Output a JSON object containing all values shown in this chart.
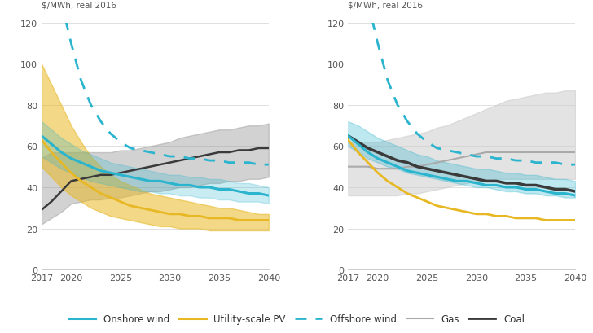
{
  "years": [
    2017,
    2018,
    2019,
    2020,
    2021,
    2022,
    2023,
    2024,
    2025,
    2026,
    2027,
    2028,
    2029,
    2030,
    2031,
    2032,
    2033,
    2034,
    2035,
    2036,
    2037,
    2038,
    2039,
    2040
  ],
  "onshore_wind_mid": [
    65,
    61,
    57,
    54,
    52,
    50,
    48,
    47,
    46,
    45,
    44,
    43,
    43,
    42,
    41,
    41,
    40,
    40,
    39,
    39,
    38,
    37,
    37,
    36
  ],
  "onshore_wind_lo": [
    55,
    52,
    49,
    47,
    45,
    43,
    42,
    41,
    40,
    39,
    38,
    38,
    37,
    37,
    36,
    36,
    35,
    35,
    34,
    34,
    33,
    33,
    33,
    32
  ],
  "onshore_wind_hi": [
    72,
    68,
    64,
    61,
    58,
    56,
    54,
    52,
    51,
    50,
    49,
    48,
    47,
    46,
    46,
    45,
    45,
    44,
    44,
    43,
    42,
    42,
    41,
    40
  ],
  "pv_mid": [
    63,
    57,
    52,
    47,
    43,
    40,
    37,
    35,
    33,
    31,
    30,
    29,
    28,
    27,
    27,
    26,
    26,
    25,
    25,
    25,
    24,
    24,
    24,
    24
  ],
  "pv_lo": [
    50,
    45,
    40,
    36,
    33,
    30,
    28,
    26,
    25,
    24,
    23,
    22,
    21,
    21,
    20,
    20,
    20,
    19,
    19,
    19,
    19,
    19,
    19,
    19
  ],
  "pv_hi": [
    100,
    90,
    80,
    70,
    62,
    55,
    50,
    46,
    43,
    41,
    39,
    37,
    36,
    35,
    34,
    33,
    32,
    31,
    30,
    30,
    29,
    28,
    27,
    27
  ],
  "offshore_wind_mid": [
    200,
    160,
    130,
    110,
    92,
    80,
    72,
    66,
    62,
    59,
    58,
    57,
    56,
    55,
    55,
    54,
    54,
    53,
    53,
    52,
    52,
    52,
    51,
    51
  ],
  "coal_left_mid": [
    29,
    33,
    38,
    43,
    44,
    45,
    46,
    46,
    47,
    48,
    49,
    50,
    51,
    52,
    53,
    54,
    55,
    56,
    57,
    57,
    58,
    58,
    59,
    59
  ],
  "coal_left_lo": [
    22,
    25,
    28,
    32,
    33,
    34,
    34,
    35,
    35,
    36,
    37,
    38,
    38,
    39,
    40,
    40,
    41,
    42,
    42,
    43,
    43,
    44,
    44,
    45
  ],
  "coal_left_hi": [
    54,
    57,
    57,
    57,
    57,
    57,
    57,
    57,
    58,
    58,
    59,
    60,
    61,
    62,
    64,
    65,
    66,
    67,
    68,
    68,
    69,
    70,
    70,
    71
  ],
  "coal_right_mid": [
    65,
    62,
    59,
    57,
    55,
    53,
    52,
    50,
    49,
    48,
    47,
    46,
    45,
    44,
    43,
    43,
    42,
    42,
    41,
    41,
    40,
    39,
    39,
    38
  ],
  "coal_right_lo": [
    60,
    57,
    54,
    52,
    50,
    49,
    47,
    46,
    45,
    44,
    43,
    42,
    41,
    40,
    40,
    39,
    38,
    38,
    37,
    37,
    36,
    36,
    35,
    35
  ],
  "coal_right_hi": [
    72,
    70,
    67,
    64,
    62,
    60,
    58,
    56,
    55,
    53,
    52,
    51,
    50,
    49,
    49,
    48,
    47,
    47,
    46,
    46,
    45,
    44,
    44,
    43
  ],
  "gas_mid": [
    50,
    50,
    50,
    49,
    49,
    49,
    50,
    50,
    51,
    52,
    53,
    54,
    55,
    56,
    57,
    57,
    57,
    57,
    57,
    57,
    57,
    57,
    57,
    57
  ],
  "gas_lo": [
    36,
    36,
    36,
    36,
    36,
    36,
    37,
    37,
    38,
    39,
    40,
    41,
    42,
    43,
    43,
    44,
    44,
    44,
    44,
    44,
    44,
    44,
    44,
    44
  ],
  "gas_hi": [
    62,
    62,
    62,
    62,
    63,
    64,
    65,
    66,
    67,
    69,
    70,
    72,
    74,
    76,
    78,
    80,
    82,
    83,
    84,
    85,
    86,
    86,
    87,
    87
  ],
  "ylabel": "$/MWh, real 2016",
  "ylim": [
    0,
    120
  ],
  "yticks": [
    0,
    20,
    40,
    60,
    80,
    100,
    120
  ],
  "xticks": [
    2017,
    2020,
    2025,
    2030,
    2035,
    2040
  ],
  "color_onshore": "#2ab4ce",
  "color_pv": "#e8b824",
  "color_offshore": "#2ab4ce",
  "color_coal": "#3a3a3a",
  "color_coal_band": "#909090",
  "color_gas_band": "#cccccc",
  "color_gas_line": "#aaaaaa",
  "bg_color": "#ffffff"
}
